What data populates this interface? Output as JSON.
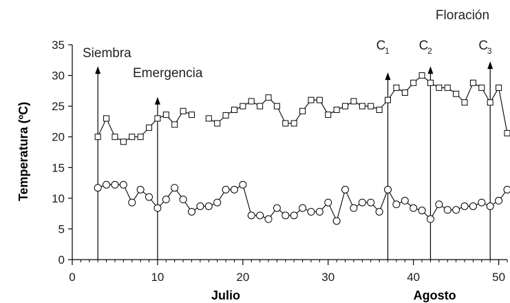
{
  "chart_data": {
    "type": "line",
    "title": "",
    "ylabel": "Temperatura (ºC)",
    "xlim": [
      0,
      51
    ],
    "ylim": [
      0,
      35
    ],
    "xticks": [
      0,
      10,
      20,
      30,
      40,
      50
    ],
    "yticks": [
      0,
      5,
      10,
      15,
      20,
      25,
      30,
      35
    ],
    "month_labels": [
      {
        "text": "Julio",
        "x": 18
      },
      {
        "text": "Agosto",
        "x": 42.5
      }
    ],
    "series": [
      {
        "marker": "square",
        "segments": [
          [
            [
              3,
              20
            ],
            [
              4,
              23
            ],
            [
              5,
              20
            ],
            [
              6,
              19.2
            ],
            [
              7,
              20
            ],
            [
              8,
              20
            ],
            [
              9,
              21.5
            ],
            [
              10,
              23
            ],
            [
              11,
              23.6
            ],
            [
              12,
              22
            ],
            [
              13,
              24.2
            ],
            [
              14,
              23.6
            ]
          ],
          [
            [
              16,
              23
            ],
            [
              17,
              22.2
            ],
            [
              18,
              23.5
            ],
            [
              19,
              24.4
            ],
            [
              20,
              25
            ],
            [
              21,
              25.8
            ],
            [
              22,
              25
            ],
            [
              23,
              26.4
            ],
            [
              24,
              25
            ],
            [
              25,
              22.2
            ],
            [
              26,
              22.2
            ],
            [
              27,
              24.2
            ],
            [
              28,
              26
            ],
            [
              29,
              26
            ],
            [
              30,
              23.6
            ],
            [
              31,
              24.4
            ],
            [
              32,
              25
            ],
            [
              33,
              25.8
            ],
            [
              34,
              25
            ],
            [
              35,
              25
            ],
            [
              36,
              24.4
            ],
            [
              37,
              26
            ],
            [
              38,
              28
            ],
            [
              39,
              27.2
            ],
            [
              40,
              28.8
            ],
            [
              41,
              30
            ],
            [
              42,
              28.8
            ],
            [
              43,
              28
            ],
            [
              44,
              28
            ],
            [
              45,
              27
            ],
            [
              46,
              25.6
            ],
            [
              47,
              28.8
            ],
            [
              48,
              28
            ],
            [
              49,
              25.6
            ],
            [
              50,
              28
            ],
            [
              51,
              20.6
            ]
          ]
        ]
      },
      {
        "marker": "circle",
        "segments": [
          [
            [
              3,
              11.7
            ],
            [
              4,
              12.2
            ],
            [
              5,
              12.2
            ],
            [
              6,
              12.2
            ],
            [
              7,
              9.3
            ],
            [
              8,
              11.4
            ],
            [
              9,
              10.2
            ],
            [
              10,
              8.4
            ],
            [
              11,
              9.8
            ],
            [
              12,
              11.7
            ],
            [
              13,
              9.8
            ],
            [
              14,
              7.8
            ],
            [
              15,
              8.7
            ],
            [
              16,
              8.7
            ],
            [
              17,
              9.3
            ],
            [
              18,
              11.4
            ],
            [
              19,
              11.4
            ],
            [
              20,
              12.2
            ],
            [
              21,
              7.2
            ],
            [
              22,
              7.2
            ],
            [
              23,
              6.6
            ],
            [
              24,
              8.4
            ],
            [
              25,
              7.2
            ],
            [
              26,
              7.2
            ],
            [
              27,
              8.4
            ],
            [
              28,
              7.8
            ],
            [
              29,
              7.8
            ],
            [
              30,
              9.3
            ],
            [
              31,
              6.3
            ],
            [
              32,
              11.4
            ],
            [
              33,
              8.4
            ],
            [
              34,
              9.3
            ],
            [
              35,
              9.3
            ],
            [
              36,
              7.8
            ],
            [
              37,
              11.4
            ],
            [
              38,
              9
            ],
            [
              39,
              9.6
            ],
            [
              40,
              8.4
            ],
            [
              41,
              8
            ],
            [
              42,
              6.6
            ],
            [
              43,
              9
            ],
            [
              44,
              8.1
            ],
            [
              45,
              8.1
            ],
            [
              46,
              8.7
            ],
            [
              47,
              8.7
            ],
            [
              48,
              9.3
            ],
            [
              49,
              8.7
            ],
            [
              50,
              9.6
            ],
            [
              51,
              11.4
            ]
          ]
        ]
      }
    ],
    "annotations": [
      {
        "label": "Siembra",
        "x": 3,
        "arrow_top": 31.5
      },
      {
        "label": "Emergencia",
        "x": 10,
        "arrow_top": 26.5
      },
      {
        "label": "C",
        "sub": "1",
        "x": 37,
        "arrow_top": 30.5
      },
      {
        "label": "C",
        "sub": "2",
        "x": 42,
        "arrow_top": 31.5
      },
      {
        "label": "C",
        "sub": "3",
        "x": 49,
        "arrow_top": 32.3
      }
    ],
    "top_annotation": "Floración"
  }
}
